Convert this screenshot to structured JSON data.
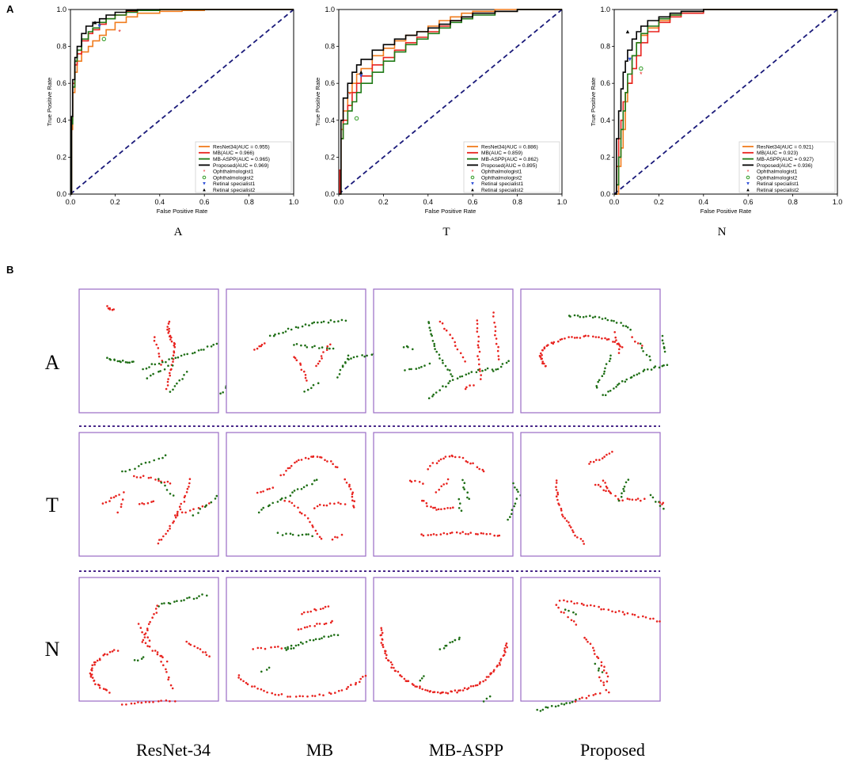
{
  "figure": {
    "panel_a_label": "A",
    "panel_b_label": "B",
    "row_labels": [
      "A",
      "T",
      "N"
    ],
    "column_labels": [
      "ResNet-34",
      "MB",
      "MB-ASPP",
      "Proposed"
    ]
  },
  "colors": {
    "resnet34": "#f07c1e",
    "mb": "#e8231f",
    "mbaspp": "#1f7a16",
    "proposed": "#000000",
    "diagonal": "#1a1a7a",
    "frame": "#9a6cc4",
    "separator": "#4a2a8a",
    "red_points": "#e8231f",
    "green_points": "#1e6e15"
  },
  "chart_data": [
    {
      "type": "line",
      "title": "A",
      "xlabel": "False Positive Rate",
      "ylabel": "True Positive Rate",
      "xlim": [
        0,
        1
      ],
      "ylim": [
        0,
        1
      ],
      "ticks": [
        "0.0",
        "0.2",
        "0.4",
        "0.6",
        "0.8",
        "1.0"
      ],
      "series": [
        {
          "name": "ResNet34(AUC = 0.955)",
          "color": "#f07c1e",
          "x": [
            0,
            0.005,
            0.01,
            0.02,
            0.03,
            0.05,
            0.08,
            0.1,
            0.13,
            0.16,
            0.2,
            0.25,
            0.3,
            0.4,
            0.5,
            0.6,
            0.8,
            1.0
          ],
          "y": [
            0,
            0.35,
            0.55,
            0.66,
            0.72,
            0.77,
            0.8,
            0.83,
            0.86,
            0.89,
            0.93,
            0.96,
            0.98,
            0.99,
            0.995,
            1.0,
            1.0,
            1.0
          ]
        },
        {
          "name": "MB(AUC = 0.966)",
          "color": "#e8231f",
          "x": [
            0,
            0.005,
            0.01,
            0.02,
            0.03,
            0.05,
            0.08,
            0.1,
            0.13,
            0.16,
            0.2,
            0.25,
            0.3,
            0.4,
            0.5,
            0.7,
            1.0
          ],
          "y": [
            0,
            0.4,
            0.6,
            0.7,
            0.76,
            0.83,
            0.87,
            0.89,
            0.92,
            0.95,
            0.97,
            0.99,
            0.995,
            1.0,
            1.0,
            1.0,
            1.0
          ]
        },
        {
          "name": "MB-ASPP(AUC = 0.965)",
          "color": "#1f7a16",
          "x": [
            0,
            0.005,
            0.01,
            0.02,
            0.03,
            0.05,
            0.08,
            0.1,
            0.13,
            0.16,
            0.2,
            0.25,
            0.3,
            0.4,
            0.5,
            0.7,
            1.0
          ],
          "y": [
            0,
            0.38,
            0.58,
            0.72,
            0.78,
            0.84,
            0.88,
            0.9,
            0.93,
            0.95,
            0.97,
            0.985,
            0.995,
            1.0,
            1.0,
            1.0,
            1.0
          ]
        },
        {
          "name": "Proposed(AUC = 0.969)",
          "color": "#000000",
          "x": [
            0,
            0.005,
            0.01,
            0.02,
            0.03,
            0.05,
            0.07,
            0.1,
            0.13,
            0.16,
            0.2,
            0.25,
            0.3,
            0.4,
            0.6,
            1.0
          ],
          "y": [
            0,
            0.42,
            0.62,
            0.74,
            0.8,
            0.87,
            0.91,
            0.93,
            0.95,
            0.97,
            0.985,
            0.995,
            1.0,
            1.0,
            1.0,
            1.0
          ]
        }
      ],
      "markers": [
        {
          "name": "Ophthalmologist1",
          "symbol": "star",
          "color": "#e8231f",
          "x": 0.22,
          "y": 0.88
        },
        {
          "name": "Ophthalmologist2",
          "symbol": "circle",
          "color": "#2e9a22",
          "x": 0.15,
          "y": 0.84
        },
        {
          "name": "Retinal specialist1",
          "symbol": "tri-down",
          "color": "#3050d8",
          "x": 0.13,
          "y": 0.91
        },
        {
          "name": "Retinal specialist2",
          "symbol": "tri-up",
          "color": "#000000",
          "x": 0.11,
          "y": 0.93
        }
      ]
    },
    {
      "type": "line",
      "title": "T",
      "xlabel": "False Positive Rate",
      "ylabel": "True Positive Rate",
      "xlim": [
        0,
        1
      ],
      "ylim": [
        0,
        1
      ],
      "ticks": [
        "0.0",
        "0.2",
        "0.4",
        "0.6",
        "0.8",
        "1.0"
      ],
      "series": [
        {
          "name": "ResNet34(AUC = 0.886)",
          "color": "#f07c1e",
          "x": [
            0,
            0.01,
            0.02,
            0.04,
            0.06,
            0.08,
            0.1,
            0.15,
            0.2,
            0.25,
            0.3,
            0.35,
            0.4,
            0.45,
            0.5,
            0.55,
            0.6,
            0.7,
            0.8,
            0.9,
            1.0
          ],
          "y": [
            0,
            0.35,
            0.45,
            0.55,
            0.6,
            0.65,
            0.68,
            0.75,
            0.79,
            0.83,
            0.86,
            0.88,
            0.91,
            0.94,
            0.96,
            0.98,
            0.99,
            1.0,
            1.0,
            1.0,
            1.0
          ]
        },
        {
          "name": "MB(AUC = 0.859)",
          "color": "#e8231f",
          "x": [
            0,
            0.005,
            0.01,
            0.02,
            0.04,
            0.06,
            0.08,
            0.1,
            0.15,
            0.2,
            0.25,
            0.3,
            0.35,
            0.4,
            0.45,
            0.5,
            0.55,
            0.6,
            0.7,
            0.8,
            1.0
          ],
          "y": [
            0,
            0.13,
            0.3,
            0.4,
            0.48,
            0.55,
            0.6,
            0.64,
            0.7,
            0.74,
            0.78,
            0.82,
            0.85,
            0.88,
            0.91,
            0.94,
            0.96,
            0.98,
            0.99,
            1.0,
            1.0
          ]
        },
        {
          "name": "MB-ASPP(AUC = 0.862)",
          "color": "#1f7a16",
          "x": [
            0,
            0.01,
            0.02,
            0.04,
            0.06,
            0.08,
            0.1,
            0.15,
            0.2,
            0.25,
            0.3,
            0.35,
            0.4,
            0.45,
            0.5,
            0.55,
            0.6,
            0.7,
            0.8,
            0.9,
            1.0
          ],
          "y": [
            0,
            0.3,
            0.38,
            0.45,
            0.5,
            0.55,
            0.6,
            0.66,
            0.72,
            0.77,
            0.81,
            0.84,
            0.87,
            0.9,
            0.93,
            0.95,
            0.97,
            0.99,
            1.0,
            1.0,
            1.0
          ]
        },
        {
          "name": "Proposed(AUC = 0.895)",
          "color": "#000000",
          "x": [
            0,
            0.01,
            0.02,
            0.04,
            0.06,
            0.08,
            0.1,
            0.15,
            0.2,
            0.25,
            0.3,
            0.35,
            0.4,
            0.45,
            0.5,
            0.55,
            0.6,
            0.7,
            0.8,
            0.9,
            1.0
          ],
          "y": [
            0,
            0.4,
            0.52,
            0.6,
            0.66,
            0.7,
            0.73,
            0.78,
            0.81,
            0.84,
            0.86,
            0.88,
            0.9,
            0.92,
            0.94,
            0.96,
            0.98,
            0.99,
            1.0,
            1.0,
            1.0
          ]
        }
      ],
      "markers": [
        {
          "name": "Ophthalmologist1",
          "symbol": "star",
          "color": "#e8231f",
          "x": 0.05,
          "y": 0.54
        },
        {
          "name": "Ophthalmologist2",
          "symbol": "circle",
          "color": "#2e9a22",
          "x": 0.08,
          "y": 0.41
        },
        {
          "name": "Retinal specialist1",
          "symbol": "tri-down",
          "color": "#3050d8",
          "x": 0.1,
          "y": 0.64
        },
        {
          "name": "Retinal specialist2",
          "symbol": "tri-up",
          "color": "#000000",
          "x": 0.1,
          "y": 0.66
        }
      ]
    },
    {
      "type": "line",
      "title": "N",
      "xlabel": "False Positive Rate",
      "ylabel": "True Positive Rate",
      "xlim": [
        0,
        1
      ],
      "ylim": [
        0,
        1
      ],
      "ticks": [
        "0.0",
        "0.2",
        "0.4",
        "0.6",
        "0.8",
        "1.0"
      ],
      "series": [
        {
          "name": "ResNet34(AUC = 0.921)",
          "color": "#f07c1e",
          "x": [
            0,
            0.01,
            0.02,
            0.03,
            0.04,
            0.05,
            0.06,
            0.08,
            0.1,
            0.12,
            0.15,
            0.2,
            0.25,
            0.3,
            0.4,
            0.5,
            0.7,
            1.0
          ],
          "y": [
            0,
            0.0,
            0.15,
            0.25,
            0.35,
            0.5,
            0.6,
            0.75,
            0.82,
            0.86,
            0.9,
            0.94,
            0.97,
            0.99,
            1.0,
            1.0,
            1.0,
            1.0
          ]
        },
        {
          "name": "MB(AUC = 0.923)",
          "color": "#e8231f",
          "x": [
            0,
            0.01,
            0.02,
            0.03,
            0.04,
            0.05,
            0.06,
            0.08,
            0.1,
            0.12,
            0.15,
            0.2,
            0.25,
            0.3,
            0.4,
            0.5,
            0.7,
            1.0
          ],
          "y": [
            0,
            0.15,
            0.3,
            0.4,
            0.5,
            0.55,
            0.6,
            0.68,
            0.75,
            0.82,
            0.88,
            0.93,
            0.96,
            0.98,
            1.0,
            1.0,
            1.0,
            1.0
          ]
        },
        {
          "name": "MB-ASPP(AUC = 0.927)",
          "color": "#1f7a16",
          "x": [
            0,
            0.01,
            0.02,
            0.03,
            0.04,
            0.05,
            0.06,
            0.08,
            0.1,
            0.12,
            0.15,
            0.2,
            0.25,
            0.3,
            0.4,
            0.5,
            0.7,
            1.0
          ],
          "y": [
            0,
            0.05,
            0.2,
            0.35,
            0.45,
            0.55,
            0.65,
            0.75,
            0.82,
            0.87,
            0.91,
            0.95,
            0.97,
            0.99,
            1.0,
            1.0,
            1.0,
            1.0
          ]
        },
        {
          "name": "Proposed(AUC = 0.936)",
          "color": "#000000",
          "x": [
            0,
            0.01,
            0.02,
            0.03,
            0.04,
            0.05,
            0.06,
            0.08,
            0.1,
            0.12,
            0.15,
            0.2,
            0.25,
            0.3,
            0.4,
            0.5,
            0.7,
            1.0
          ],
          "y": [
            0,
            0.3,
            0.45,
            0.57,
            0.66,
            0.72,
            0.78,
            0.84,
            0.88,
            0.91,
            0.94,
            0.96,
            0.98,
            0.99,
            1.0,
            1.0,
            1.0,
            1.0
          ]
        }
      ],
      "markers": [
        {
          "name": "Ophthalmologist1",
          "symbol": "star",
          "color": "#e8231f",
          "x": 0.12,
          "y": 0.65
        },
        {
          "name": "Ophthalmologist2",
          "symbol": "circle",
          "color": "#2e9a22",
          "x": 0.12,
          "y": 0.68
        },
        {
          "name": "Retinal specialist1",
          "symbol": "tri-down",
          "color": "#3050d8",
          "x": 0.07,
          "y": 0.73
        },
        {
          "name": "Retinal specialist2",
          "symbol": "tri-up",
          "color": "#000000",
          "x": 0.06,
          "y": 0.88
        }
      ]
    }
  ]
}
